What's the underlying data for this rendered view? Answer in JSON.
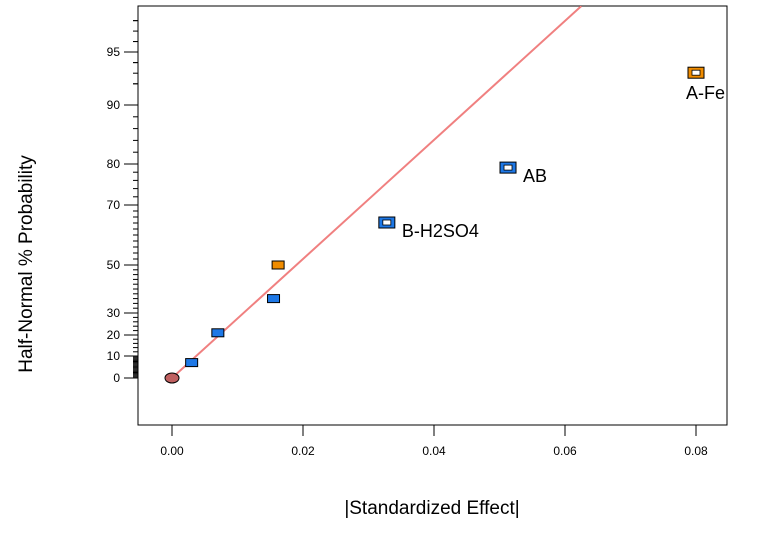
{
  "chart_data": {
    "type": "scatter",
    "title": "",
    "xlabel": "|Standardized Effect|",
    "ylabel": "Half-Normal % Probability",
    "xlim": [
      -0.005,
      0.085
    ],
    "x_ticks": [
      {
        "value": 0,
        "label": "0.00"
      },
      {
        "value": 0.02,
        "label": "0.02"
      },
      {
        "value": 0.04,
        "label": "0.04"
      },
      {
        "value": 0.06,
        "label": "0.06"
      },
      {
        "value": 0.08,
        "label": "0.08"
      }
    ],
    "y_ticks": [
      {
        "value": 0,
        "label": "0"
      },
      {
        "value": 10,
        "label": "10"
      },
      {
        "value": 20,
        "label": "20"
      },
      {
        "value": 30,
        "label": "30"
      },
      {
        "value": 50,
        "label": "50"
      },
      {
        "value": 70,
        "label": "70"
      },
      {
        "value": 80,
        "label": "80"
      },
      {
        "value": 90,
        "label": "90"
      },
      {
        "value": 95,
        "label": "95"
      }
    ],
    "colors": {
      "positive": "#f08c00",
      "negative": "#1e78e6",
      "error": "#c06060",
      "fit_line": "#f08080"
    },
    "fit_line": {
      "x": [
        0,
        0.0625
      ],
      "y": [
        0,
        99.4
      ]
    },
    "points": [
      {
        "x": 0.0,
        "y": 0,
        "kind": "error",
        "label": ""
      },
      {
        "x": 0.003,
        "y": 7,
        "kind": "negative",
        "label": ""
      },
      {
        "x": 0.007,
        "y": 21,
        "kind": "negative",
        "label": ""
      },
      {
        "x": 0.0155,
        "y": 36,
        "kind": "negative",
        "label": ""
      },
      {
        "x": 0.0162,
        "y": 50,
        "kind": "positive",
        "label": ""
      },
      {
        "x": 0.0328,
        "y": 64,
        "kind": "negative",
        "label": "B-H2SO4"
      },
      {
        "x": 0.0513,
        "y": 79,
        "kind": "negative",
        "label": "AB"
      },
      {
        "x": 0.08,
        "y": 93,
        "kind": "positive",
        "label": "A-Fe"
      }
    ]
  }
}
